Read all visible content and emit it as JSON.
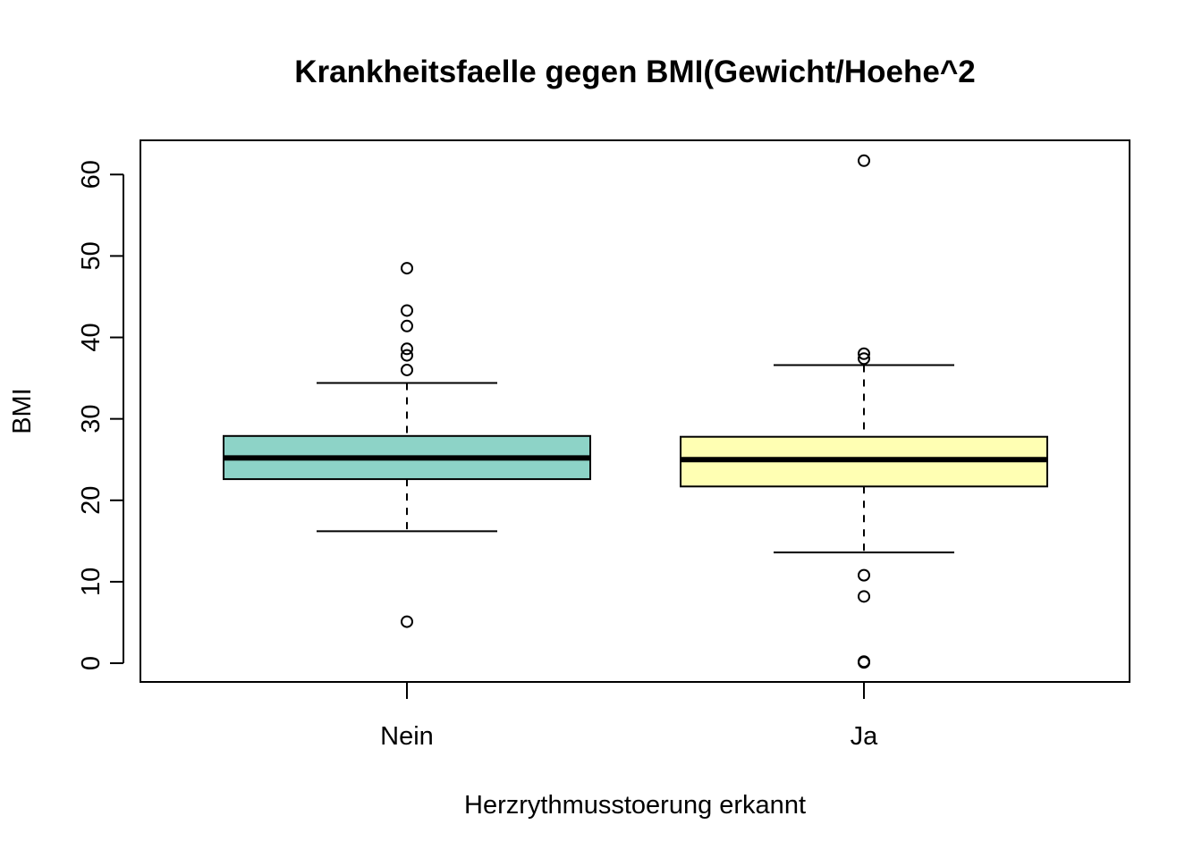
{
  "chart_data": {
    "type": "box",
    "title": "Krankheitsfaelle gegen BMI(Gewicht/Hoehe^2",
    "xlabel": "Herzrythmusstoerung erkannt",
    "ylabel": "BMI",
    "ylim": [
      -2.3,
      64.2
    ],
    "yticks": [
      0,
      10,
      20,
      30,
      40,
      50,
      60
    ],
    "ytick_labels": [
      "0",
      "10",
      "20",
      "30",
      "40",
      "50",
      "60"
    ],
    "categories": [
      "Nein",
      "Ja"
    ],
    "boxes": [
      {
        "category": "Nein",
        "color": "#8DD3C7",
        "whisker_low": 16.2,
        "q1": 22.6,
        "median": 25.2,
        "q3": 27.9,
        "whisker_high": 34.4,
        "outliers": [
          48.5,
          43.3,
          41.4,
          38.6,
          37.8,
          36.0,
          5.1
        ]
      },
      {
        "category": "Ja",
        "color": "#FFFFB3",
        "whisker_low": 13.6,
        "q1": 21.7,
        "median": 25.0,
        "q3": 27.8,
        "whisker_high": 36.6,
        "outliers": [
          61.7,
          38.0,
          37.4,
          10.8,
          8.2,
          0.2,
          0.1
        ]
      }
    ]
  }
}
